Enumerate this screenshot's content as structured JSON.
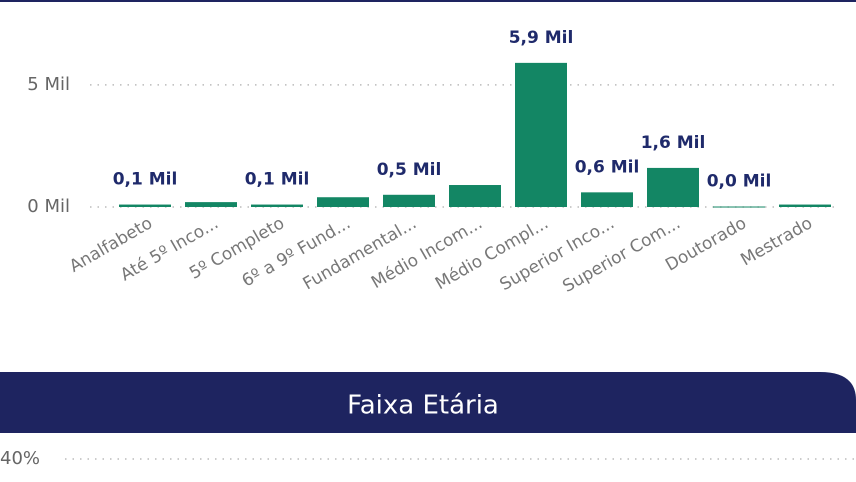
{
  "chart_data": {
    "type": "bar",
    "categories": [
      "Analfabeto",
      "Até 5º Inco...",
      "5º Completo",
      "6º a 9º Fund...",
      "Fundamental...",
      "Médio Incom...",
      "Médio Compl...",
      "Superior Inco...",
      "Superior Com...",
      "Doutorado",
      "Mestrado"
    ],
    "values": [
      0.1,
      0.2,
      0.1,
      0.4,
      0.5,
      0.9,
      5.9,
      0.6,
      1.6,
      0.02,
      0.1
    ],
    "value_labels": [
      "0,1 Mil",
      null,
      "0,1 Mil",
      null,
      "0,5 Mil",
      null,
      "5,9 Mil",
      "0,6 Mil",
      "1,6 Mil",
      "0,0 Mil",
      null
    ],
    "color": "#138664",
    "ylim": [
      0,
      7
    ],
    "yticks": [
      {
        "value": 0,
        "label": "0 Mil"
      },
      {
        "value": 5,
        "label": "5 Mil"
      }
    ],
    "grid": true
  },
  "section": {
    "title": "Faixa Etária",
    "ytick_label": "40%"
  }
}
